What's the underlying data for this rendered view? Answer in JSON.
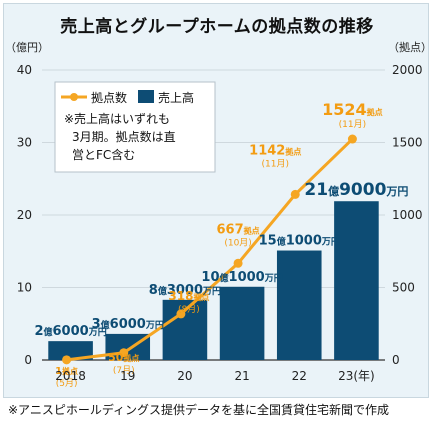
{
  "title": "売上高とグループホームの拠点数の推移",
  "source_note": "※アニスピホールディングス提供データを基に全国賃貸住宅新聞で作成",
  "colors": {
    "bar": "#0d4c74",
    "line": "#f5a623",
    "grid": "#cfd8de",
    "revenue_label": "#0d4c74",
    "count_label": "#f39c12"
  },
  "legend": {
    "line_label": "拠点数",
    "bar_label": "売上高",
    "note_lines": [
      "※売上高はいずれも",
      "3月期。拠点数は直",
      "営とFC含む"
    ]
  },
  "chart_data": {
    "type": "bar",
    "categories": [
      "2018",
      "19",
      "20",
      "21",
      "22",
      "23(年)"
    ],
    "y_left": {
      "unit": "（億円）",
      "ticks": [
        0,
        10,
        20,
        30,
        40
      ],
      "ylim": [
        0,
        40
      ]
    },
    "y_right": {
      "unit": "（拠点）",
      "ticks": [
        0,
        500,
        1000,
        1500,
        2000
      ],
      "ylim": [
        0,
        2000
      ]
    },
    "series": [
      {
        "name": "売上高",
        "type": "bar",
        "axis": "left",
        "values": [
          2.6,
          3.6,
          8.3,
          10.1,
          15.1,
          21.9
        ],
        "labels": [
          [
            {
              "t": "2",
              "b": true
            },
            {
              "t": "億"
            },
            {
              "t": "6000",
              "b": true
            },
            {
              "t": "万円"
            }
          ],
          [
            {
              "t": "3",
              "b": true
            },
            {
              "t": "億"
            },
            {
              "t": "6000",
              "b": true
            },
            {
              "t": "万円"
            }
          ],
          [
            {
              "t": "8",
              "b": true
            },
            {
              "t": "億"
            },
            {
              "t": "3000",
              "b": true
            },
            {
              "t": "万円"
            }
          ],
          [
            {
              "t": "10",
              "b": true
            },
            {
              "t": "億"
            },
            {
              "t": "1000",
              "b": true
            },
            {
              "t": "万円"
            }
          ],
          [
            {
              "t": "15",
              "b": true
            },
            {
              "t": "億"
            },
            {
              "t": "1000",
              "b": true
            },
            {
              "t": "万円"
            }
          ],
          [
            {
              "t": "21",
              "b": true
            },
            {
              "t": "億"
            },
            {
              "t": "9000",
              "b": true
            },
            {
              "t": "万円"
            }
          ]
        ]
      },
      {
        "name": "拠点数",
        "type": "line",
        "axis": "right",
        "values": [
          1,
          50,
          318,
          667,
          1142,
          1524
        ],
        "labels": [
          {
            "num": "1",
            "unit": "拠点",
            "month": "(5月)"
          },
          {
            "num": "50",
            "unit": "拠点",
            "month": "(7月)"
          },
          {
            "num": "318",
            "unit": "拠点",
            "month": "(8月)"
          },
          {
            "num": "667",
            "unit": "拠点",
            "month": "(10月)"
          },
          {
            "num": "1142",
            "unit": "拠点",
            "month": "(11月)"
          },
          {
            "num": "1524",
            "unit": "拠点",
            "month": "(11月)"
          }
        ]
      }
    ]
  }
}
